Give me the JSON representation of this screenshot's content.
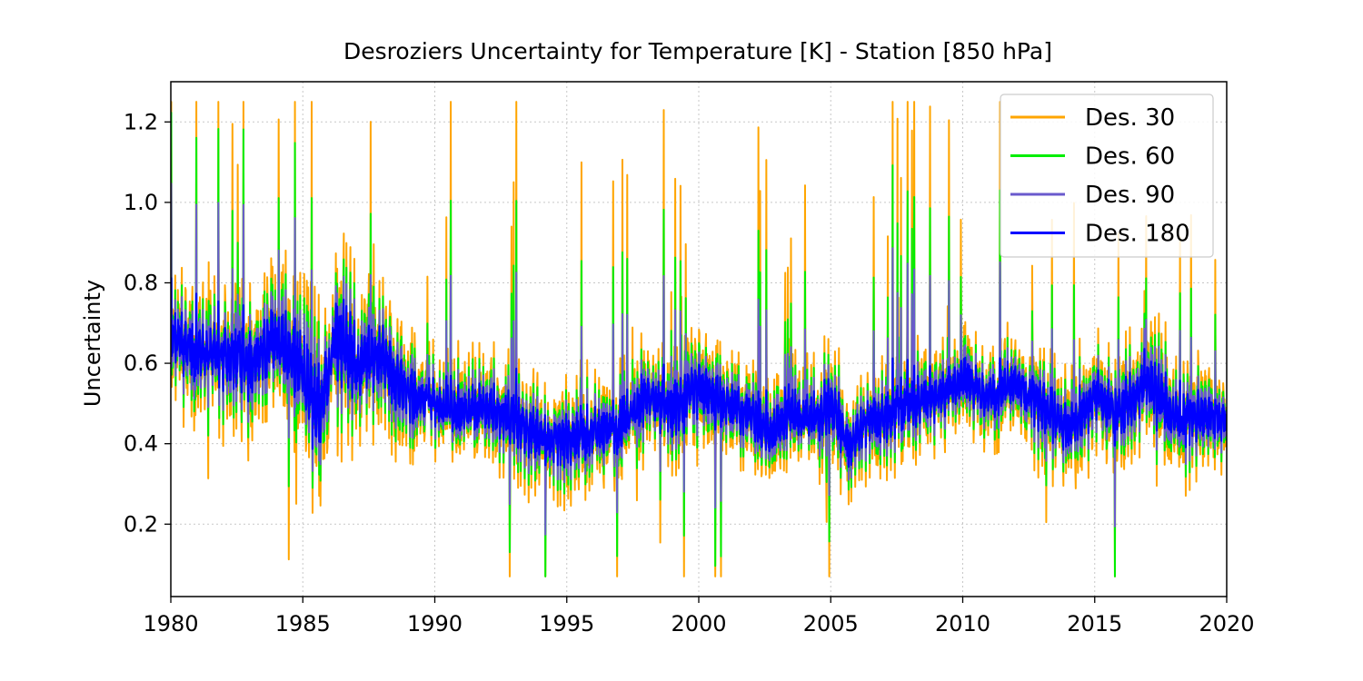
{
  "chart_data": {
    "type": "line",
    "title": "Desroziers Uncertainty for Temperature [K] - Station  [850 hPa]",
    "xlabel": "",
    "ylabel": "Uncertainty",
    "xlim": [
      1980,
      2020
    ],
    "ylim": [
      0.02,
      1.3
    ],
    "xticks": [
      1980,
      1985,
      1990,
      1995,
      2000,
      2005,
      2010,
      2015,
      2020
    ],
    "yticks": [
      0.2,
      0.4,
      0.6,
      0.8,
      1.0,
      1.2
    ],
    "xtick_labels": [
      "1980",
      "1985",
      "1990",
      "1995",
      "2000",
      "2005",
      "2010",
      "2015",
      "2020"
    ],
    "ytick_labels": [
      "0.2",
      "0.4",
      "0.6",
      "0.8",
      "1.0",
      "1.2"
    ],
    "grid": true,
    "legend_position": "top-right",
    "series": [
      {
        "name": "Des. 30",
        "color": "#ffa500",
        "amplitude_mult": 1.9
      },
      {
        "name": "Des. 60",
        "color": "#00ee00",
        "amplitude_mult": 1.45
      },
      {
        "name": "Des. 90",
        "color": "#6a5acd",
        "amplitude_mult": 1.15
      },
      {
        "name": "Des. 180",
        "color": "#0000ff",
        "amplitude_mult": 0.75
      }
    ],
    "baseline": {
      "x": [
        1980.0,
        1981.0,
        1982.0,
        1983.0,
        1984.0,
        1985.0,
        1985.5,
        1986.3,
        1987.0,
        1988.0,
        1989.0,
        1990.0,
        1991.0,
        1992.0,
        1993.0,
        1994.0,
        1995.0,
        1996.0,
        1997.0,
        1998.0,
        1999.0,
        2000.0,
        2001.0,
        2002.0,
        2002.6,
        2003.5,
        2004.0,
        2005.0,
        2005.7,
        2006.5,
        2007.0,
        2008.0,
        2009.0,
        2010.0,
        2011.0,
        2012.0,
        2013.0,
        2014.0,
        2015.0,
        2016.0,
        2017.0,
        2018.0,
        2019.0,
        2020.0
      ],
      "y": [
        0.67,
        0.63,
        0.62,
        0.6,
        0.66,
        0.58,
        0.46,
        0.68,
        0.6,
        0.62,
        0.52,
        0.5,
        0.47,
        0.49,
        0.46,
        0.42,
        0.41,
        0.43,
        0.44,
        0.52,
        0.48,
        0.54,
        0.5,
        0.47,
        0.42,
        0.48,
        0.45,
        0.5,
        0.4,
        0.47,
        0.46,
        0.5,
        0.51,
        0.56,
        0.52,
        0.55,
        0.5,
        0.43,
        0.52,
        0.48,
        0.55,
        0.47,
        0.47,
        0.46
      ]
    },
    "base_spread": {
      "x": [
        1980,
        1984,
        1986,
        1988,
        1990,
        1995,
        2000,
        2005,
        2010,
        2015,
        2017,
        2020
      ],
      "y": [
        0.1,
        0.11,
        0.14,
        0.1,
        0.07,
        0.08,
        0.08,
        0.08,
        0.07,
        0.08,
        0.1,
        0.07
      ]
    }
  }
}
